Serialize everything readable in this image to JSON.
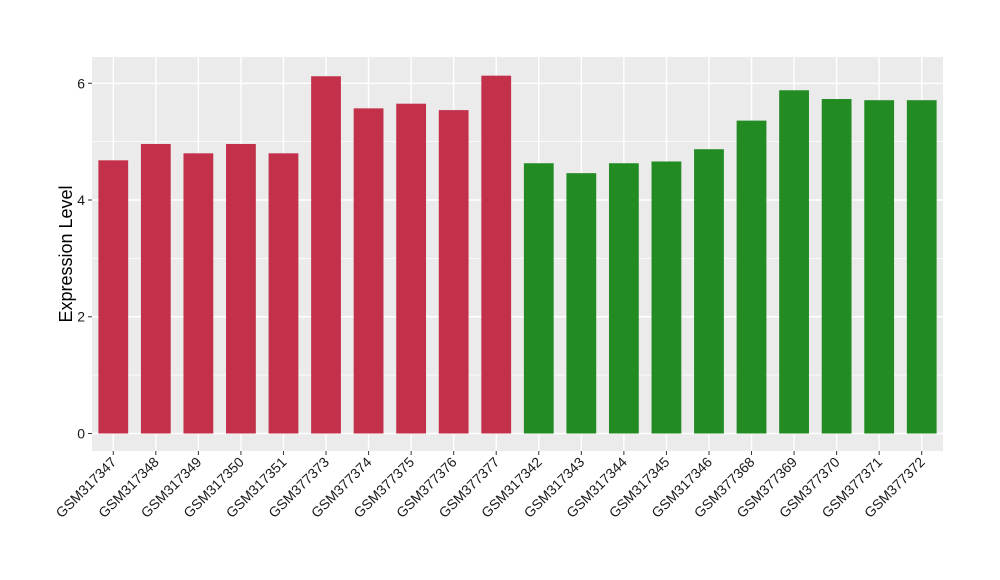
{
  "chart_data": {
    "type": "bar",
    "title": "",
    "xlabel": "",
    "ylabel": "Expression Level",
    "ylim": [
      -0.3,
      6.45
    ],
    "yticks": [
      0,
      2,
      4,
      6
    ],
    "categories": [
      "GSM317347",
      "GSM317348",
      "GSM317349",
      "GSM317350",
      "GSM317351",
      "GSM377373",
      "GSM377374",
      "GSM377375",
      "GSM377376",
      "GSM377377",
      "GSM317342",
      "GSM317343",
      "GSM317344",
      "GSM317345",
      "GSM317346",
      "GSM377368",
      "GSM377369",
      "GSM377370",
      "GSM377371",
      "GSM377372"
    ],
    "values": [
      4.68,
      4.96,
      4.8,
      4.96,
      4.8,
      6.12,
      5.57,
      5.65,
      5.54,
      6.13,
      4.63,
      4.46,
      4.63,
      4.66,
      4.87,
      5.36,
      5.88,
      5.73,
      5.71,
      5.71
    ],
    "bar_colors": [
      "#c3304a",
      "#c3304a",
      "#c3304a",
      "#c3304a",
      "#c3304a",
      "#c3304a",
      "#c3304a",
      "#c3304a",
      "#c3304a",
      "#c3304a",
      "#228b22",
      "#228b22",
      "#228b22",
      "#228b22",
      "#228b22",
      "#228b22",
      "#228b22",
      "#228b22",
      "#228b22",
      "#228b22"
    ],
    "panel_background": "#ebebeb",
    "grid": true,
    "legend": "none"
  }
}
